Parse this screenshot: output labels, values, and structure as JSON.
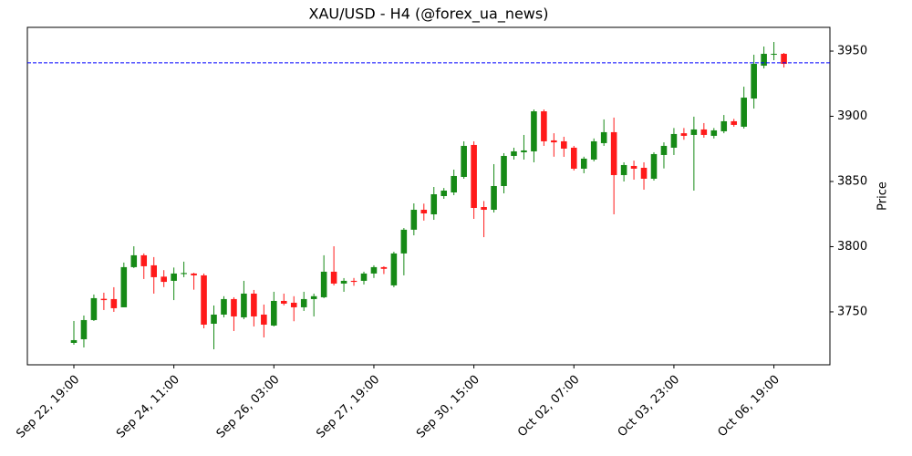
{
  "chart_data": {
    "type": "candlestick",
    "title": "XAU/USD - H4 (@forex_ua_news)",
    "ylabel": "Price",
    "open": [
      3726.2,
      3729.0,
      3743.7,
      3760.0,
      3759.8,
      3753.5,
      3784.3,
      3793.4,
      3785.7,
      3777.0,
      3773.8,
      3779.0,
      3779.4,
      3778.0,
      3740.9,
      3747.9,
      3759.8,
      3745.8,
      3764.0,
      3747.9,
      3739.5,
      3758.4,
      3757.0,
      3753.5,
      3759.8,
      3761.2,
      3780.8,
      3771.7,
      3773.8,
      3773.8,
      3779.4,
      3784.3,
      3770.3,
      3794.8,
      3813.0,
      3828.3,
      3824.8,
      3838.8,
      3841.6,
      3853.5,
      3878.0,
      3830.4,
      3828.3,
      3846.5,
      3869.6,
      3872.4,
      3873.1,
      3903.8,
      3881.5,
      3880.8,
      3875.9,
      3859.8,
      3866.8,
      3879.4,
      3887.8,
      3854.9,
      3861.9,
      3860.5,
      3852.1,
      3870.3,
      3875.9,
      3887.0,
      3885.7,
      3889.9,
      3885.0,
      3888.5,
      3896.2,
      3892.0,
      3913.6,
      3938.8,
      3947.2,
      3947.9
    ],
    "high": [
      3743.0,
      3747.2,
      3763.3,
      3764.7,
      3768.9,
      3787.8,
      3800.3,
      3794.8,
      3792.0,
      3782.0,
      3784.0,
      3788.5,
      3780.0,
      3779.4,
      3754.9,
      3762.0,
      3761.2,
      3773.8,
      3766.8,
      3755.6,
      3765.4,
      3764.0,
      3762.0,
      3765.4,
      3764.0,
      3793.4,
      3800.3,
      3775.9,
      3776.0,
      3780.8,
      3785.7,
      3785.0,
      3796.1,
      3814.3,
      3833.2,
      3833.0,
      3845.8,
      3845.0,
      3859.1,
      3880.8,
      3880.8,
      3835.0,
      3863.3,
      3871.7,
      3875.9,
      3885.7,
      3905.2,
      3905.2,
      3887.0,
      3884.3,
      3877.3,
      3869.0,
      3883.0,
      3897.6,
      3899.0,
      3864.7,
      3866.0,
      3864.7,
      3872.4,
      3880.0,
      3891.0,
      3891.0,
      3899.7,
      3894.8,
      3891.0,
      3901.0,
      3898.0,
      3922.7,
      3947.2,
      3953.5,
      3957.0,
      3948.6
    ],
    "low": [
      3724.8,
      3722.7,
      3743.0,
      3751.4,
      3750.0,
      3753.5,
      3783.6,
      3775.2,
      3764.0,
      3769.0,
      3759.0,
      3776.6,
      3767.0,
      3737.4,
      3721.3,
      3745.8,
      3735.3,
      3744.4,
      3738.8,
      3730.4,
      3738.8,
      3755.0,
      3742.8,
      3750.7,
      3746.5,
      3760.5,
      3770.3,
      3765.4,
      3770.0,
      3771.0,
      3776.0,
      3779.0,
      3768.9,
      3778.0,
      3808.7,
      3820.0,
      3820.6,
      3836.7,
      3839.5,
      3852.1,
      3821.3,
      3807.3,
      3826.2,
      3840.9,
      3866.8,
      3866.8,
      3864.7,
      3877.3,
      3869.0,
      3868.9,
      3858.4,
      3856.3,
      3865.4,
      3877.3,
      3824.8,
      3850.0,
      3851.4,
      3843.7,
      3850.7,
      3860.0,
      3870.3,
      3882.0,
      3843.0,
      3883.6,
      3883.0,
      3887.0,
      3892.0,
      3890.6,
      3905.9,
      3936.7,
      3943.0,
      3937.4
    ],
    "close": [
      3728.3,
      3743.7,
      3760.5,
      3759.0,
      3752.8,
      3784.3,
      3793.4,
      3785.0,
      3776.6,
      3773.0,
      3779.4,
      3779.8,
      3778.0,
      3740.2,
      3747.9,
      3759.8,
      3746.5,
      3764.0,
      3746.5,
      3740.2,
      3758.4,
      3756.3,
      3753.5,
      3759.8,
      3762.0,
      3780.8,
      3771.7,
      3773.8,
      3773.0,
      3779.4,
      3784.3,
      3783.0,
      3794.8,
      3813.0,
      3828.3,
      3825.5,
      3840.2,
      3843.0,
      3854.2,
      3877.3,
      3829.7,
      3828.3,
      3846.5,
      3869.6,
      3873.1,
      3873.8,
      3903.8,
      3880.8,
      3880.0,
      3875.2,
      3859.8,
      3867.5,
      3880.8,
      3887.8,
      3854.9,
      3862.6,
      3859.8,
      3852.1,
      3871.0,
      3877.3,
      3886.4,
      3885.0,
      3889.9,
      3885.7,
      3889.2,
      3896.2,
      3893.4,
      3914.3,
      3940.2,
      3947.9,
      3947.9,
      3940.2
    ],
    "up_color": "#168a16",
    "down_color": "#ff1a1a",
    "xlim": [
      -4.65,
      75.6
    ],
    "xticks": [
      {
        "value": 0,
        "label": "Sep 22, 19:00"
      },
      {
        "value": 10,
        "label": "Sep 24, 11:00"
      },
      {
        "value": 20,
        "label": "Sep 26, 03:00"
      },
      {
        "value": 30,
        "label": "Sep 27, 19:00"
      },
      {
        "value": 40,
        "label": "Sep 30, 15:00"
      },
      {
        "value": 50,
        "label": "Oct 02, 07:00"
      },
      {
        "value": 60,
        "label": "Oct 03, 23:00"
      },
      {
        "value": 70,
        "label": "Oct 06, 19:00"
      }
    ],
    "ylim": [
      3709.4,
      3968.2
    ],
    "yticks": [
      3750,
      3800,
      3850,
      3900,
      3950
    ],
    "hline": {
      "value": 3941,
      "color": "#0000ff",
      "style": "dashed"
    },
    "y_axis_side": "right"
  }
}
